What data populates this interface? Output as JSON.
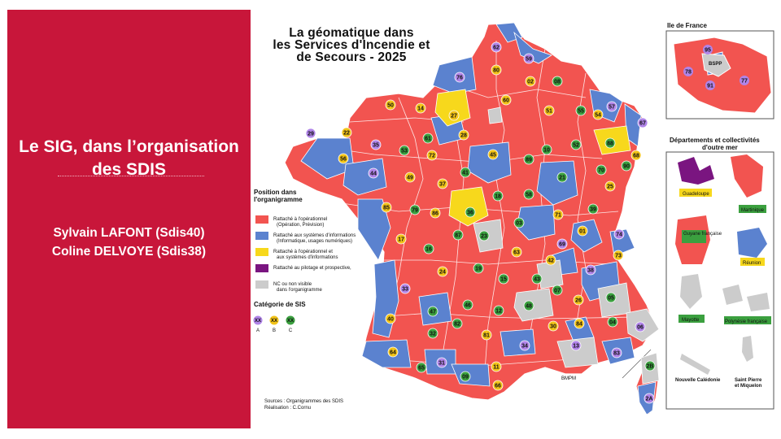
{
  "slide": {
    "subtitle_line1": "Le SIG, dans l’organisation",
    "subtitle_line2": "des SDIS",
    "authors": [
      "Sylvain LAFONT (Sdis40)",
      "Coline DELVOYE (Sdis38)"
    ]
  },
  "map": {
    "title_line1": "La géomatique dans",
    "title_line2": "les Services d'Incendie et",
    "title_line3": "de Secours - 2025",
    "legend": {
      "title_line1": "Position dans",
      "title_line2": "l'organigramme",
      "items": [
        {
          "color": "#f25450",
          "line1": "Rattaché à l'opérationnel",
          "line2": "(Opération, Prévision)"
        },
        {
          "color": "#5b82cf",
          "line1": "Rattaché aux systèmes d'informations",
          "line2": "(Informatique, usages numériques)"
        },
        {
          "color": "#f7d81c",
          "line1": "Rattaché à l'opérationnel et",
          "line2": "aux systèmes d'informations"
        },
        {
          "color": "#7a1580",
          "line1": "Rattaché au pilotage et prospective,",
          "line2": ""
        },
        {
          "color": "#cccccc",
          "line1": "NC ou non visible",
          "line2": "dans l'organigramme"
        }
      ],
      "category_title": "Catégorie de SIS",
      "categories": [
        {
          "code": "A",
          "color": "#b084e8",
          "mark": "XX"
        },
        {
          "code": "B",
          "color": "#f2c318",
          "mark": "XX"
        },
        {
          "code": "C",
          "color": "#3ba03f",
          "mark": "XX"
        }
      ]
    },
    "sources_line1": "Sources : Organigrammes des SDIS",
    "sources_line2": "Réalisation : C.Cornu",
    "bmpm_label": "BMPM",
    "idf": {
      "title": "Ile de France",
      "bspp_label": "BSPP",
      "departments": [
        "95",
        "78",
        "91",
        "77"
      ]
    },
    "outremer": {
      "title_line1": "Départements et collectivités",
      "title_line2": "d'outre mer",
      "territories": [
        "Guadeloupe",
        "Martinique",
        "Guyane française",
        "Réunion",
        "Mayotte",
        "Polynésie française",
        "Nouvelle Calédonie",
        "Saint Pierre et Miquelon"
      ],
      "saint_pierre_line1": "Saint Pierre",
      "saint_pierre_line2": "et Miquelon"
    },
    "departments": [
      {
        "code": "62",
        "cat": "A"
      },
      {
        "code": "59",
        "cat": "A"
      },
      {
        "code": "80",
        "cat": "B"
      },
      {
        "code": "76",
        "cat": "A"
      },
      {
        "code": "02",
        "cat": "B"
      },
      {
        "code": "08",
        "cat": "C"
      },
      {
        "code": "60",
        "cat": "B"
      },
      {
        "code": "50",
        "cat": "B"
      },
      {
        "code": "14",
        "cat": "B"
      },
      {
        "code": "27",
        "cat": "B"
      },
      {
        "code": "51",
        "cat": "B"
      },
      {
        "code": "55",
        "cat": "C"
      },
      {
        "code": "57",
        "cat": "A"
      },
      {
        "code": "54",
        "cat": "B"
      },
      {
        "code": "67",
        "cat": "A"
      },
      {
        "code": "61",
        "cat": "C"
      },
      {
        "code": "28",
        "cat": "B"
      },
      {
        "code": "29",
        "cat": "A"
      },
      {
        "code": "22",
        "cat": "B"
      },
      {
        "code": "35",
        "cat": "A"
      },
      {
        "code": "53",
        "cat": "C"
      },
      {
        "code": "72",
        "cat": "B"
      },
      {
        "code": "45",
        "cat": "B"
      },
      {
        "code": "10",
        "cat": "C"
      },
      {
        "code": "52",
        "cat": "C"
      },
      {
        "code": "88",
        "cat": "C"
      },
      {
        "code": "68",
        "cat": "B"
      },
      {
        "code": "56",
        "cat": "B"
      },
      {
        "code": "44",
        "cat": "A"
      },
      {
        "code": "49",
        "cat": "B"
      },
      {
        "code": "41",
        "cat": "C"
      },
      {
        "code": "89",
        "cat": "C"
      },
      {
        "code": "21",
        "cat": "C"
      },
      {
        "code": "70",
        "cat": "C"
      },
      {
        "code": "90",
        "cat": "C"
      },
      {
        "code": "37",
        "cat": "B"
      },
      {
        "code": "18",
        "cat": "C"
      },
      {
        "code": "58",
        "cat": "C"
      },
      {
        "code": "25",
        "cat": "B"
      },
      {
        "code": "85",
        "cat": "B"
      },
      {
        "code": "79",
        "cat": "C"
      },
      {
        "code": "86",
        "cat": "B"
      },
      {
        "code": "36",
        "cat": "C"
      },
      {
        "code": "71",
        "cat": "B"
      },
      {
        "code": "39",
        "cat": "C"
      },
      {
        "code": "17",
        "cat": "B"
      },
      {
        "code": "87",
        "cat": "C"
      },
      {
        "code": "23",
        "cat": "C"
      },
      {
        "code": "03",
        "cat": "C"
      },
      {
        "code": "01",
        "cat": "B"
      },
      {
        "code": "74",
        "cat": "A"
      },
      {
        "code": "16",
        "cat": "C"
      },
      {
        "code": "63",
        "cat": "B"
      },
      {
        "code": "69",
        "cat": "A"
      },
      {
        "code": "42",
        "cat": "B"
      },
      {
        "code": "73",
        "cat": "B"
      },
      {
        "code": "24",
        "cat": "B"
      },
      {
        "code": "19",
        "cat": "C"
      },
      {
        "code": "15",
        "cat": "C"
      },
      {
        "code": "43",
        "cat": "C"
      },
      {
        "code": "38",
        "cat": "A"
      },
      {
        "code": "33",
        "cat": "A"
      },
      {
        "code": "07",
        "cat": "C"
      },
      {
        "code": "26",
        "cat": "B"
      },
      {
        "code": "05",
        "cat": "C"
      },
      {
        "code": "47",
        "cat": "C"
      },
      {
        "code": "46",
        "cat": "C"
      },
      {
        "code": "12",
        "cat": "C"
      },
      {
        "code": "48",
        "cat": "C"
      },
      {
        "code": "40",
        "cat": "B"
      },
      {
        "code": "82",
        "cat": "C"
      },
      {
        "code": "84",
        "cat": "B"
      },
      {
        "code": "04",
        "cat": "C"
      },
      {
        "code": "06",
        "cat": "A"
      },
      {
        "code": "32",
        "cat": "C"
      },
      {
        "code": "81",
        "cat": "B"
      },
      {
        "code": "30",
        "cat": "B"
      },
      {
        "code": "13",
        "cat": "A"
      },
      {
        "code": "83",
        "cat": "A"
      },
      {
        "code": "64",
        "cat": "B"
      },
      {
        "code": "65",
        "cat": "C"
      },
      {
        "code": "31",
        "cat": "A"
      },
      {
        "code": "34",
        "cat": "A"
      },
      {
        "code": "09",
        "cat": "C"
      },
      {
        "code": "11",
        "cat": "B"
      },
      {
        "code": "66",
        "cat": "B"
      },
      {
        "code": "2B",
        "cat": "C"
      },
      {
        "code": "2A",
        "cat": "A"
      }
    ]
  }
}
